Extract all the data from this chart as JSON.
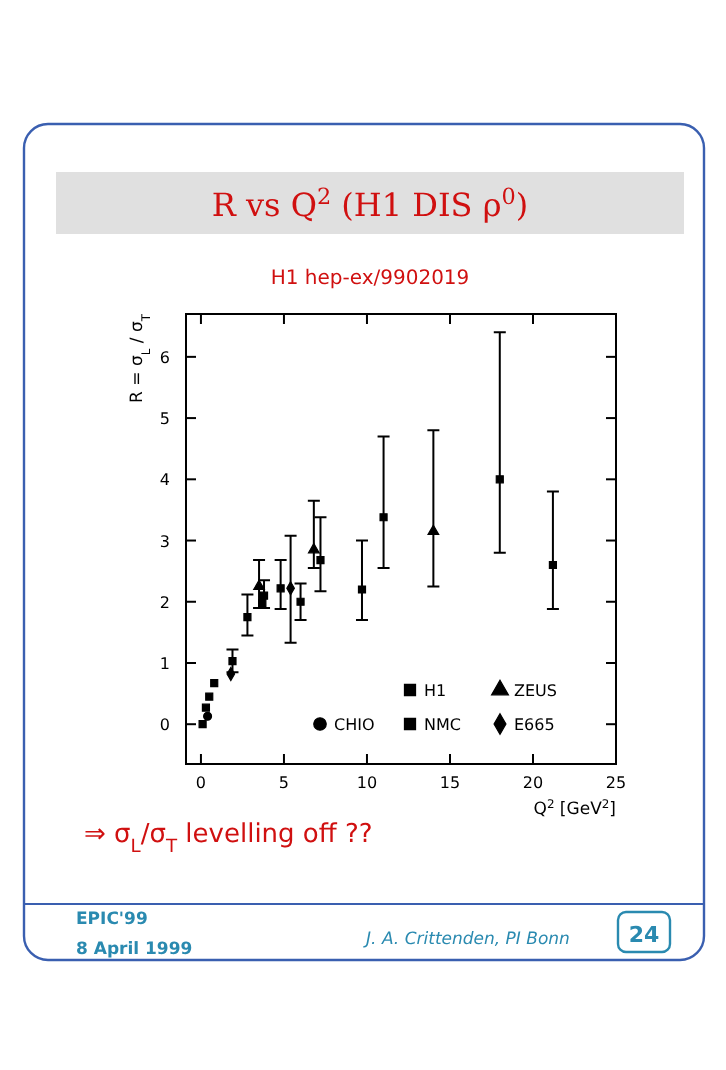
{
  "chart_data": {
    "type": "scatter",
    "title": "R vs Q$^{2}$ (H1 DIS ρ$^{0}$)",
    "subtitle": "H1 hep-ex/9902019",
    "xlabel": "Q$^{2}$ [GeV$^{2}$]",
    "ylabel": "R = σ$_{L}$ / σ$_{T}$",
    "xlim": [
      -0.9,
      25
    ],
    "xticks": [
      0,
      5,
      10,
      15,
      20,
      25
    ],
    "ylim": [
      -0.65,
      6.7
    ],
    "yticks": [
      0,
      1,
      2,
      3,
      4,
      5,
      6
    ],
    "grid": false,
    "legend": "bottom right",
    "series": [
      {
        "name": "H1",
        "color": "#000000",
        "marker": "square",
        "x": [
          0.1,
          0.3,
          0.5,
          0.8,
          1.9,
          2.8,
          3.8,
          4.8,
          7.2,
          9.7,
          11.0,
          18.0,
          21.2
        ],
        "values": [
          0.0,
          0.27,
          0.45,
          0.67,
          1.03,
          1.75,
          2.1,
          2.22,
          2.68,
          2.2,
          3.38,
          4.0,
          2.6
        ],
        "errors": [
          null,
          null,
          null,
          null,
          [
            0.85,
            1.22
          ],
          [
            1.45,
            2.12
          ],
          [
            1.9,
            2.35
          ],
          [
            1.88,
            2.68
          ],
          [
            2.17,
            3.38
          ],
          [
            1.7,
            3.0
          ],
          [
            2.55,
            4.7
          ],
          [
            2.8,
            6.4
          ],
          [
            1.88,
            3.8
          ]
        ]
      },
      {
        "name": "ZEUS",
        "color": "#000000",
        "marker": "triangle",
        "x": [
          3.5,
          6.8,
          14.0
        ],
        "values": [
          2.25,
          2.85,
          3.15
        ],
        "errors": [
          [
            1.9,
            2.68
          ],
          [
            2.55,
            3.65
          ],
          [
            2.25,
            4.8
          ]
        ]
      },
      {
        "name": "CHIO",
        "color": "#000000",
        "marker": "circle",
        "x": [
          0.4
        ],
        "values": [
          0.13
        ],
        "errors": [
          null
        ]
      },
      {
        "name": "NMC",
        "color": "#000000",
        "marker": "square",
        "x": [
          3.7,
          6.0
        ],
        "values": [
          1.98,
          2.0
        ],
        "errors": [
          null,
          [
            1.7,
            2.3
          ]
        ]
      },
      {
        "name": "E665",
        "color": "#000000",
        "marker": "diamond",
        "x": [
          1.8,
          5.4
        ],
        "values": [
          0.82,
          2.22
        ],
        "errors": [
          null,
          [
            1.33,
            3.08
          ]
        ]
      }
    ],
    "annotations": [
      "⇒ σ$_{L}$/σ$_{T}$ levelling off ??",
      "EPIC'99",
      "8 April 1999",
      "J. A. Crittenden, PI Bonn",
      "24"
    ]
  }
}
